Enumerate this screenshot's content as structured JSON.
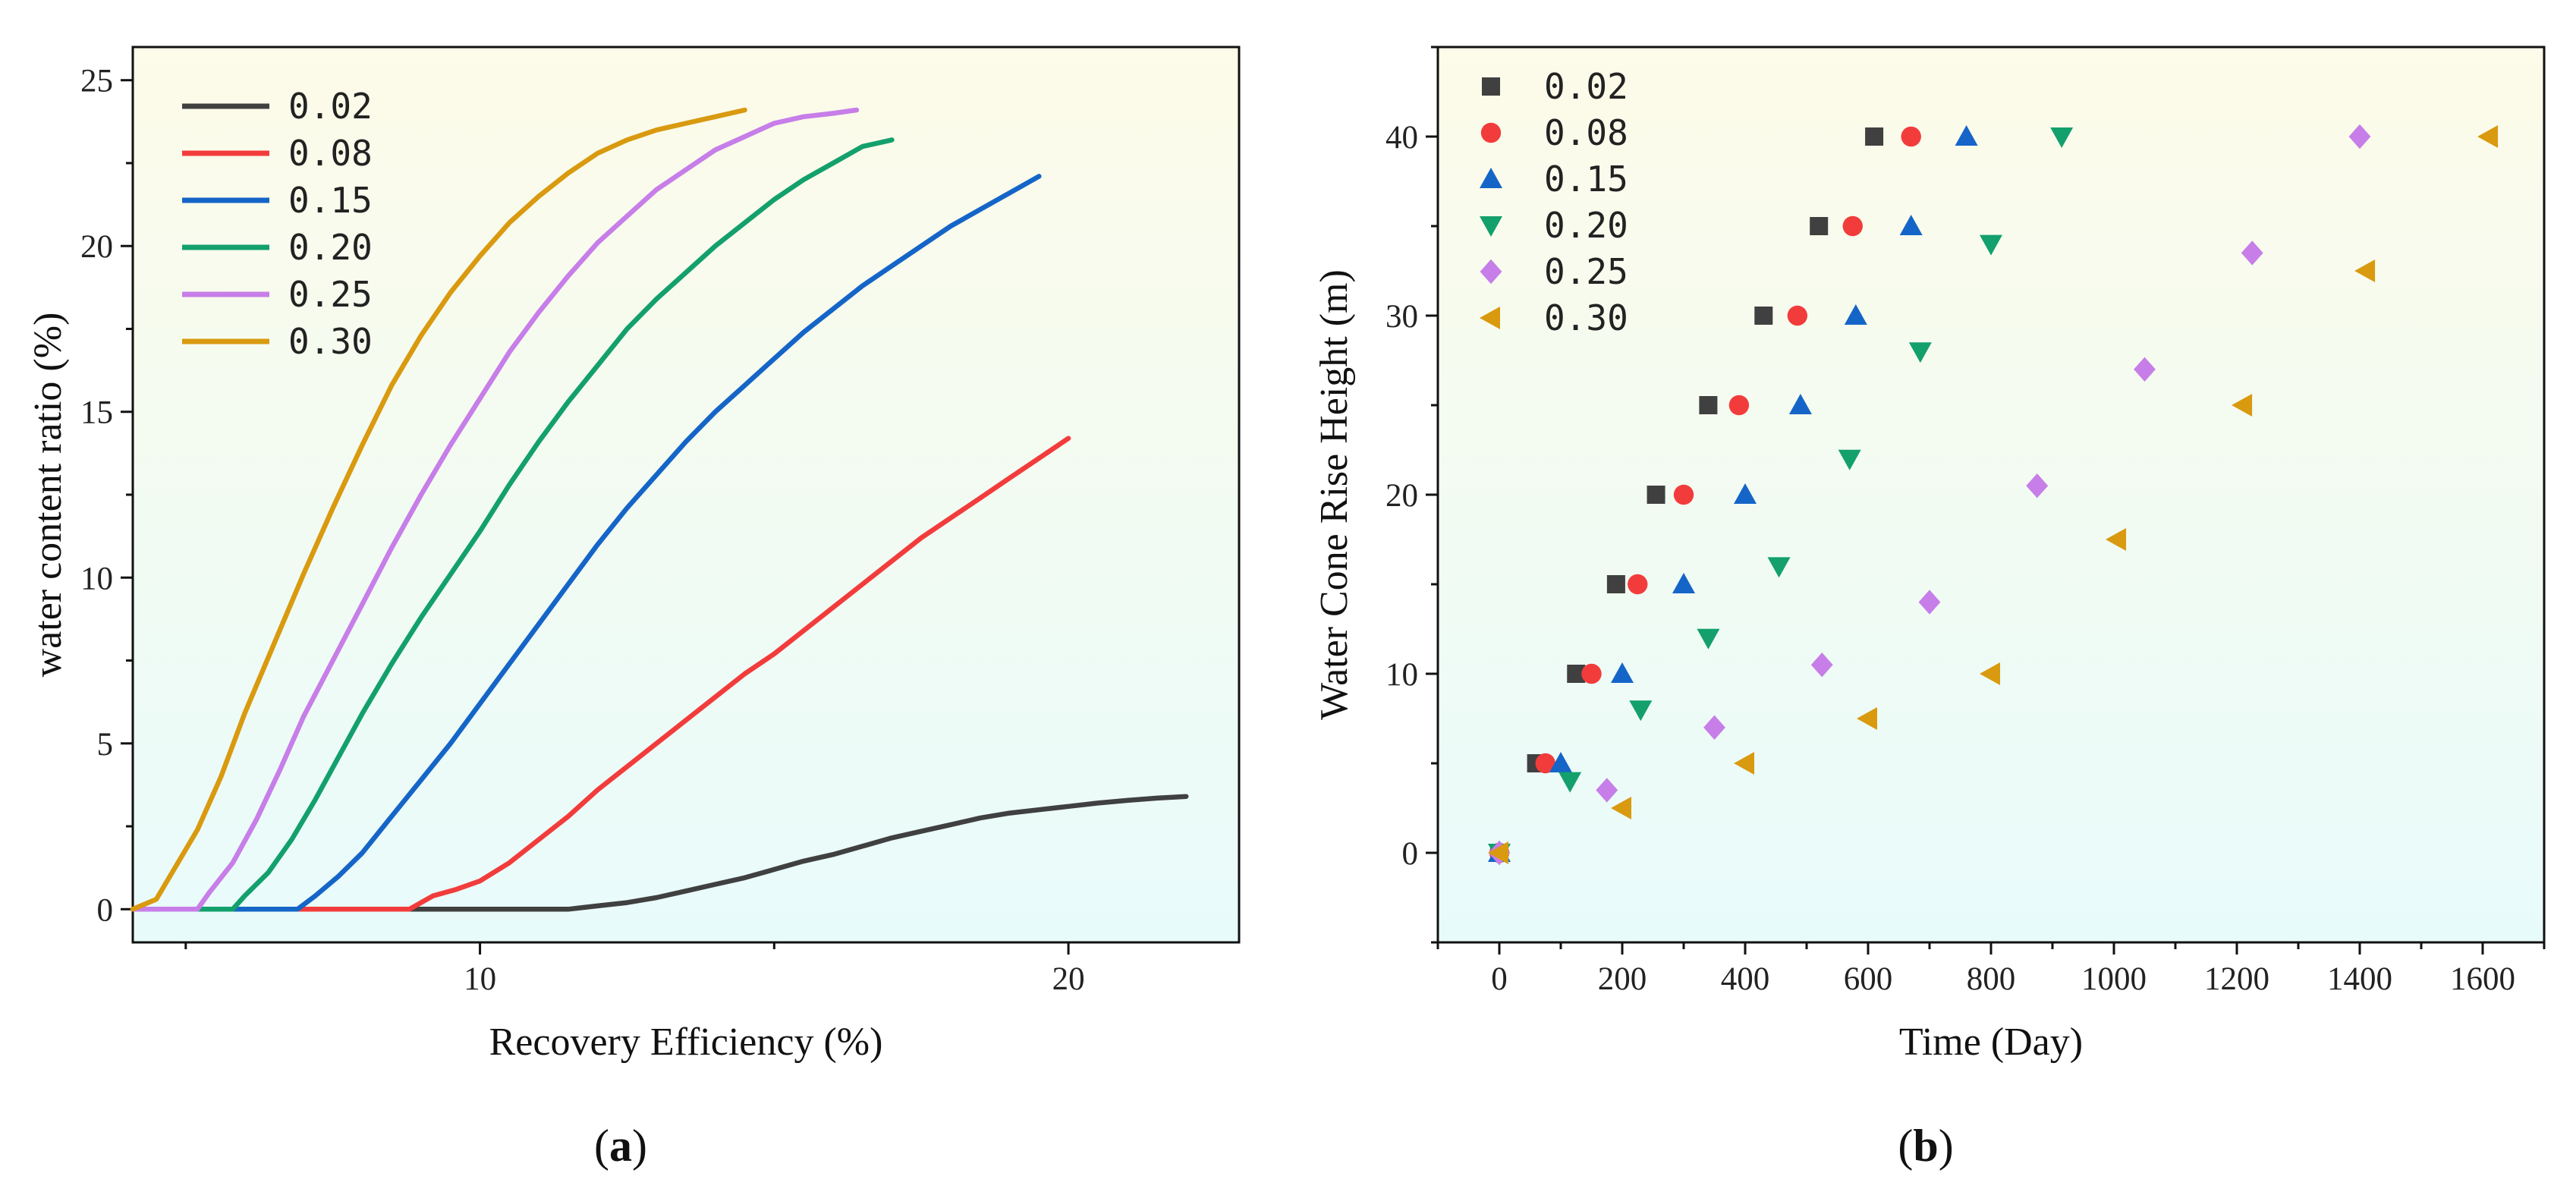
{
  "figure_panels": {
    "a_label": "(a)",
    "b_label": "(b)"
  },
  "chart_data": [
    {
      "type": "line",
      "panel": "a",
      "xlabel": "Recovery Efficiency (%)",
      "ylabel": "water content ratio (%)",
      "xlim": [
        4.1,
        22.9
      ],
      "ylim": [
        -1,
        26
      ],
      "xticks": [
        10,
        20
      ],
      "xminor": [
        5,
        15
      ],
      "yticks": [
        0,
        5,
        10,
        15,
        20,
        25
      ],
      "legend_position": "top-left",
      "series": [
        {
          "name": "0.02",
          "color": "#404040",
          "points": [
            [
              4.1,
              0
            ],
            [
              11.5,
              0
            ],
            [
              12.0,
              0.1
            ],
            [
              12.5,
              0.2
            ],
            [
              13.0,
              0.35
            ],
            [
              13.5,
              0.55
            ],
            [
              14.0,
              0.75
            ],
            [
              14.5,
              0.95
            ],
            [
              15.0,
              1.2
            ],
            [
              15.5,
              1.45
            ],
            [
              16.0,
              1.65
            ],
            [
              16.5,
              1.9
            ],
            [
              17.0,
              2.15
            ],
            [
              17.5,
              2.35
            ],
            [
              18.0,
              2.55
            ],
            [
              18.5,
              2.75
            ],
            [
              19.0,
              2.9
            ],
            [
              19.5,
              3.0
            ],
            [
              20.0,
              3.1
            ],
            [
              20.5,
              3.2
            ],
            [
              21.0,
              3.28
            ],
            [
              21.5,
              3.35
            ],
            [
              22.0,
              3.4
            ]
          ]
        },
        {
          "name": "0.08",
          "color": "#f23c3c",
          "points": [
            [
              4.1,
              0
            ],
            [
              8.8,
              0
            ],
            [
              9.2,
              0.4
            ],
            [
              9.6,
              0.6
            ],
            [
              10.0,
              0.85
            ],
            [
              10.5,
              1.4
            ],
            [
              11.0,
              2.1
            ],
            [
              11.5,
              2.8
            ],
            [
              12.0,
              3.6
            ],
            [
              12.5,
              4.3
            ],
            [
              13.0,
              5.0
            ],
            [
              13.5,
              5.7
            ],
            [
              14.0,
              6.4
            ],
            [
              14.5,
              7.1
            ],
            [
              15.0,
              7.7
            ],
            [
              15.5,
              8.4
            ],
            [
              16.0,
              9.1
            ],
            [
              16.5,
              9.8
            ],
            [
              17.0,
              10.5
            ],
            [
              17.5,
              11.2
            ],
            [
              18.0,
              11.8
            ],
            [
              18.5,
              12.4
            ],
            [
              19.0,
              13.0
            ],
            [
              19.5,
              13.6
            ],
            [
              20.0,
              14.2
            ]
          ]
        },
        {
          "name": "0.15",
          "color": "#1565c8",
          "points": [
            [
              4.1,
              0
            ],
            [
              6.9,
              0
            ],
            [
              7.2,
              0.4
            ],
            [
              7.6,
              1.0
            ],
            [
              8.0,
              1.7
            ],
            [
              8.5,
              2.8
            ],
            [
              9.0,
              3.9
            ],
            [
              9.5,
              5.0
            ],
            [
              10.0,
              6.2
            ],
            [
              10.5,
              7.4
            ],
            [
              11.0,
              8.6
            ],
            [
              11.5,
              9.8
            ],
            [
              12.0,
              11.0
            ],
            [
              12.5,
              12.1
            ],
            [
              13.0,
              13.1
            ],
            [
              13.5,
              14.1
            ],
            [
              14.0,
              15.0
            ],
            [
              14.5,
              15.8
            ],
            [
              15.0,
              16.6
            ],
            [
              15.5,
              17.4
            ],
            [
              16.0,
              18.1
            ],
            [
              16.5,
              18.8
            ],
            [
              17.0,
              19.4
            ],
            [
              17.5,
              20.0
            ],
            [
              18.0,
              20.6
            ],
            [
              18.5,
              21.1
            ],
            [
              19.0,
              21.6
            ],
            [
              19.5,
              22.1
            ]
          ]
        },
        {
          "name": "0.20",
          "color": "#13a06c",
          "points": [
            [
              4.1,
              0
            ],
            [
              5.8,
              0
            ],
            [
              6.0,
              0.4
            ],
            [
              6.4,
              1.1
            ],
            [
              6.8,
              2.1
            ],
            [
              7.2,
              3.3
            ],
            [
              7.6,
              4.6
            ],
            [
              8.0,
              5.9
            ],
            [
              8.5,
              7.4
            ],
            [
              9.0,
              8.8
            ],
            [
              9.5,
              10.1
            ],
            [
              10.0,
              11.4
            ],
            [
              10.5,
              12.8
            ],
            [
              11.0,
              14.1
            ],
            [
              11.5,
              15.3
            ],
            [
              12.0,
              16.4
            ],
            [
              12.5,
              17.5
            ],
            [
              13.0,
              18.4
            ],
            [
              13.5,
              19.2
            ],
            [
              14.0,
              20.0
            ],
            [
              14.5,
              20.7
            ],
            [
              15.0,
              21.4
            ],
            [
              15.5,
              22.0
            ],
            [
              16.0,
              22.5
            ],
            [
              16.5,
              23.0
            ],
            [
              17.0,
              23.2
            ]
          ]
        },
        {
          "name": "0.25",
          "color": "#c77ee8",
          "points": [
            [
              4.1,
              0
            ],
            [
              5.2,
              0
            ],
            [
              5.4,
              0.5
            ],
            [
              5.8,
              1.4
            ],
            [
              6.2,
              2.7
            ],
            [
              6.6,
              4.2
            ],
            [
              7.0,
              5.8
            ],
            [
              7.5,
              7.5
            ],
            [
              8.0,
              9.2
            ],
            [
              8.5,
              10.9
            ],
            [
              9.0,
              12.5
            ],
            [
              9.5,
              14.0
            ],
            [
              10.0,
              15.4
            ],
            [
              10.5,
              16.8
            ],
            [
              11.0,
              18.0
            ],
            [
              11.5,
              19.1
            ],
            [
              12.0,
              20.1
            ],
            [
              12.5,
              20.9
            ],
            [
              13.0,
              21.7
            ],
            [
              13.5,
              22.3
            ],
            [
              14.0,
              22.9
            ],
            [
              14.5,
              23.3
            ],
            [
              15.0,
              23.7
            ],
            [
              15.5,
              23.9
            ],
            [
              16.0,
              24.0
            ],
            [
              16.4,
              24.1
            ]
          ]
        },
        {
          "name": "0.30",
          "color": "#d99a10",
          "points": [
            [
              4.1,
              0
            ],
            [
              4.5,
              0.3
            ],
            [
              4.8,
              1.2
            ],
            [
              5.2,
              2.4
            ],
            [
              5.6,
              4.0
            ],
            [
              6.0,
              5.9
            ],
            [
              6.5,
              8.0
            ],
            [
              7.0,
              10.1
            ],
            [
              7.5,
              12.1
            ],
            [
              8.0,
              14.0
            ],
            [
              8.5,
              15.8
            ],
            [
              9.0,
              17.3
            ],
            [
              9.5,
              18.6
            ],
            [
              10.0,
              19.7
            ],
            [
              10.5,
              20.7
            ],
            [
              11.0,
              21.5
            ],
            [
              11.5,
              22.2
            ],
            [
              12.0,
              22.8
            ],
            [
              12.5,
              23.2
            ],
            [
              13.0,
              23.5
            ],
            [
              13.5,
              23.7
            ],
            [
              14.0,
              23.9
            ],
            [
              14.5,
              24.1
            ]
          ]
        }
      ]
    },
    {
      "type": "scatter",
      "panel": "b",
      "xlabel": "Time (Day)",
      "ylabel": "Water Cone Rise Height (m)",
      "xlim": [
        -100,
        1700
      ],
      "ylim": [
        -5,
        45
      ],
      "xticks": [
        0,
        200,
        400,
        600,
        800,
        1000,
        1200,
        1400,
        1600
      ],
      "yticks": [
        0,
        10,
        20,
        30,
        40
      ],
      "legend_position": "top-left",
      "series": [
        {
          "name": "0.02",
          "color": "#404040",
          "marker": "square",
          "points": [
            [
              0,
              0
            ],
            [
              60,
              5
            ],
            [
              125,
              10
            ],
            [
              190,
              15
            ],
            [
              255,
              20
            ],
            [
              340,
              25
            ],
            [
              430,
              30
            ],
            [
              520,
              35
            ],
            [
              610,
              40
            ]
          ]
        },
        {
          "name": "0.08",
          "color": "#f23c3c",
          "marker": "circle",
          "points": [
            [
              0,
              0
            ],
            [
              75,
              5
            ],
            [
              150,
              10
            ],
            [
              225,
              15
            ],
            [
              300,
              20
            ],
            [
              390,
              25
            ],
            [
              485,
              30
            ],
            [
              575,
              35
            ],
            [
              670,
              40
            ]
          ]
        },
        {
          "name": "0.15",
          "color": "#1565c8",
          "marker": "triangle-up",
          "points": [
            [
              0,
              0
            ],
            [
              100,
              5
            ],
            [
              200,
              10
            ],
            [
              300,
              15
            ],
            [
              400,
              20
            ],
            [
              490,
              25
            ],
            [
              580,
              30
            ],
            [
              670,
              35
            ],
            [
              760,
              40
            ]
          ]
        },
        {
          "name": "0.20",
          "color": "#13a06c",
          "marker": "triangle-down",
          "points": [
            [
              0,
              0
            ],
            [
              115,
              4
            ],
            [
              230,
              8
            ],
            [
              340,
              12
            ],
            [
              455,
              16
            ],
            [
              570,
              22
            ],
            [
              685,
              28
            ],
            [
              800,
              34
            ],
            [
              915,
              40
            ]
          ]
        },
        {
          "name": "0.25",
          "color": "#c77ee8",
          "marker": "diamond",
          "points": [
            [
              0,
              0
            ],
            [
              175,
              3.5
            ],
            [
              350,
              7
            ],
            [
              525,
              10.5
            ],
            [
              700,
              14
            ],
            [
              875,
              20.5
            ],
            [
              1050,
              27
            ],
            [
              1225,
              33.5
            ],
            [
              1400,
              40
            ]
          ]
        },
        {
          "name": "0.30",
          "color": "#d99a10",
          "marker": "triangle-left",
          "points": [
            [
              0,
              0
            ],
            [
              200,
              2.5
            ],
            [
              400,
              5
            ],
            [
              600,
              7.5
            ],
            [
              800,
              10
            ],
            [
              1005,
              17.5
            ],
            [
              1210,
              25
            ],
            [
              1410,
              32.5
            ],
            [
              1610,
              40
            ]
          ]
        }
      ]
    }
  ]
}
